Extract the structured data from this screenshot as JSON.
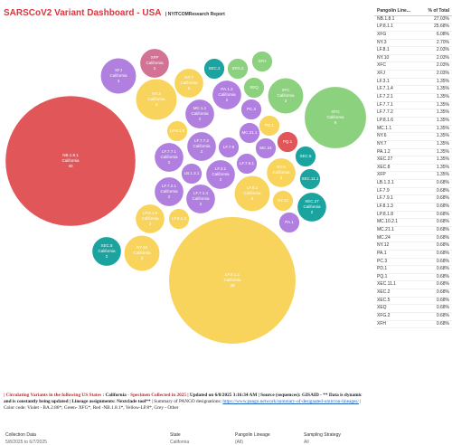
{
  "header": {
    "title": "SARSCoV2 Variant Dashboard - USA",
    "subtitle": "| NYITCOMResearch Report"
  },
  "bubble_state": "California",
  "bubbles": [
    {
      "label": "NB.1.8.1",
      "count": 40,
      "color": "#e15759"
    },
    {
      "label": "LP.8.1.1",
      "count": 38,
      "color": "#f9d45c"
    },
    {
      "label": "XFG",
      "count": 9,
      "color": "#8cd17d"
    },
    {
      "label": "NY.3",
      "count": 4,
      "color": "#f9d45c"
    },
    {
      "label": "XFJ",
      "count": 3,
      "color": "#b07fe0"
    },
    {
      "label": "XFP",
      "count": 2,
      "color": "#d37295"
    },
    {
      "label": "NY.7",
      "count": 2,
      "color": "#f9d45c"
    },
    {
      "label": "XEC.2",
      "count": 1,
      "color": "#1ba3a0"
    },
    {
      "label": "XFG.2",
      "count": 1,
      "color": "#8cd17d"
    },
    {
      "label": "XFH",
      "count": 1,
      "color": "#8cd17d"
    },
    {
      "label": "XEQ",
      "count": 1,
      "color": "#8cd17d"
    },
    {
      "label": "XFC",
      "count": 3,
      "color": "#8cd17d"
    },
    {
      "label": "PA.1.2",
      "count": 2,
      "color": "#b07fe0"
    },
    {
      "label": "MC.1.1",
      "count": 2,
      "color": "#b07fe0"
    },
    {
      "label": "PC.3",
      "count": 1,
      "color": "#b07fe0"
    },
    {
      "label": "PD.1",
      "count": 1,
      "color": "#f9d45c"
    },
    {
      "label": "MC.21.1",
      "count": 1,
      "color": "#b07fe0"
    },
    {
      "label": "LP.8.1.8",
      "count": 1,
      "color": "#f9d45c"
    },
    {
      "label": "LF.7.7.2",
      "count": 2,
      "color": "#b07fe0"
    },
    {
      "label": "LF.7.9",
      "count": 1,
      "color": "#b07fe0"
    },
    {
      "label": "MC.24",
      "count": 1,
      "color": "#b07fe0"
    },
    {
      "label": "PQ.1",
      "count": 1,
      "color": "#e15759"
    },
    {
      "label": "LF.7.7.1",
      "count": 2,
      "color": "#b07fe0"
    },
    {
      "label": "LF.7.9.1",
      "count": 1,
      "color": "#b07fe0"
    },
    {
      "label": "NY.6",
      "count": 2,
      "color": "#f9d45c"
    },
    {
      "label": "XEC.5",
      "count": 1,
      "color": "#1ba3a0"
    },
    {
      "label": "XEC.11.1",
      "count": 1,
      "color": "#1ba3a0"
    },
    {
      "label": "LB.1.3.1",
      "count": 1,
      "color": "#b07fe0"
    },
    {
      "label": "LF.3.1",
      "count": 2,
      "color": "#b07fe0"
    },
    {
      "label": "LF.7.2.1",
      "count": 2,
      "color": "#b07fe0"
    },
    {
      "label": "LF.8.1",
      "count": 3,
      "color": "#f9d45c"
    },
    {
      "label": "LF.7.1.4",
      "count": 2,
      "color": "#b07fe0"
    },
    {
      "label": "NY.12",
      "count": 1,
      "color": "#f9d45c"
    },
    {
      "label": "XEC.27",
      "count": 2,
      "color": "#1ba3a0"
    },
    {
      "label": "LP.8.1.6",
      "count": 2,
      "color": "#f9d45c"
    },
    {
      "label": "LF.8.1.3",
      "count": 1,
      "color": "#f9d45c"
    },
    {
      "label": "PA.1",
      "count": 1,
      "color": "#b07fe0"
    },
    {
      "label": "XEC.8",
      "count": 2,
      "color": "#1ba3a0"
    },
    {
      "label": "NY.10",
      "count": 3,
      "color": "#f9d45c"
    }
  ],
  "table": {
    "columns": [
      "Pangolin Line...",
      "% of Total"
    ],
    "rows": [
      [
        "NB.1.8.1",
        "27.03%"
      ],
      [
        "LP.8.1.1",
        "25.68%"
      ],
      [
        "XFG",
        "6.08%"
      ],
      [
        "NY.3",
        "2.70%"
      ],
      [
        "LF.8.1",
        "2.03%"
      ],
      [
        "NY.10",
        "2.03%"
      ],
      [
        "XFC",
        "2.03%"
      ],
      [
        "XFJ",
        "2.03%"
      ],
      [
        "LF.3.1",
        "1.35%"
      ],
      [
        "LF.7.1.4",
        "1.35%"
      ],
      [
        "LF.7.2.1",
        "1.35%"
      ],
      [
        "LF.7.7.1",
        "1.35%"
      ],
      [
        "LF.7.7.2",
        "1.35%"
      ],
      [
        "LP.8.1.6",
        "1.35%"
      ],
      [
        "MC.1.1",
        "1.35%"
      ],
      [
        "NY.6",
        "1.35%"
      ],
      [
        "NY.7",
        "1.35%"
      ],
      [
        "PA.1.2",
        "1.35%"
      ],
      [
        "XEC.27",
        "1.35%"
      ],
      [
        "XEC.8",
        "1.35%"
      ],
      [
        "XFP",
        "1.35%"
      ],
      [
        "LB.1.3.1",
        "0.68%"
      ],
      [
        "LF.7.9",
        "0.68%"
      ],
      [
        "LF.7.9.1",
        "0.68%"
      ],
      [
        "LF.8.1.3",
        "0.68%"
      ],
      [
        "LP.8.1.8",
        "0.68%"
      ],
      [
        "MC.10.2.1",
        "0.68%"
      ],
      [
        "MC.21.1",
        "0.68%"
      ],
      [
        "MC.24",
        "0.68%"
      ],
      [
        "NY.12",
        "0.68%"
      ],
      [
        "PA.1",
        "0.68%"
      ],
      [
        "PC.3",
        "0.68%"
      ],
      [
        "PD.1",
        "0.68%"
      ],
      [
        "PQ.1",
        "0.68%"
      ],
      [
        "XEC.11.1",
        "0.68%"
      ],
      [
        "XEC.2",
        "0.68%"
      ],
      [
        "XEC.5",
        "0.68%"
      ],
      [
        "XEQ",
        "0.68%"
      ],
      [
        "XFG.2",
        "0.68%"
      ],
      [
        "XFH",
        "0.68%"
      ]
    ]
  },
  "footer": {
    "segments": [
      "| Circulating Variants in the following US States :",
      "California",
      "- Specimen Collected in 2025",
      "| Updated on 6/8/2025 3:16:34 AM",
      "| Source (sequences): GISAID - ** Data is dynamic and is constantly being updated | Lineage assignments: Nextclade tool**",
      "| Summary of PANGO designations:",
      "https://www.pango.network/summary-of-designated-omicron-lineages/",
      "|",
      "Color code: Violet - BA.2.86*; Green- XFG*, Red -NB.1.8.1*, Yellow-LP.8*, Grey - Other"
    ]
  },
  "filters": [
    {
      "label": "Collection Data",
      "value": "5/8/2025 to 6/7/2025"
    },
    {
      "label": "State",
      "value": "California"
    },
    {
      "label": "Pangolin Lineage",
      "value": "(All)"
    },
    {
      "label": "Sampling Strategy",
      "value": "All"
    }
  ]
}
